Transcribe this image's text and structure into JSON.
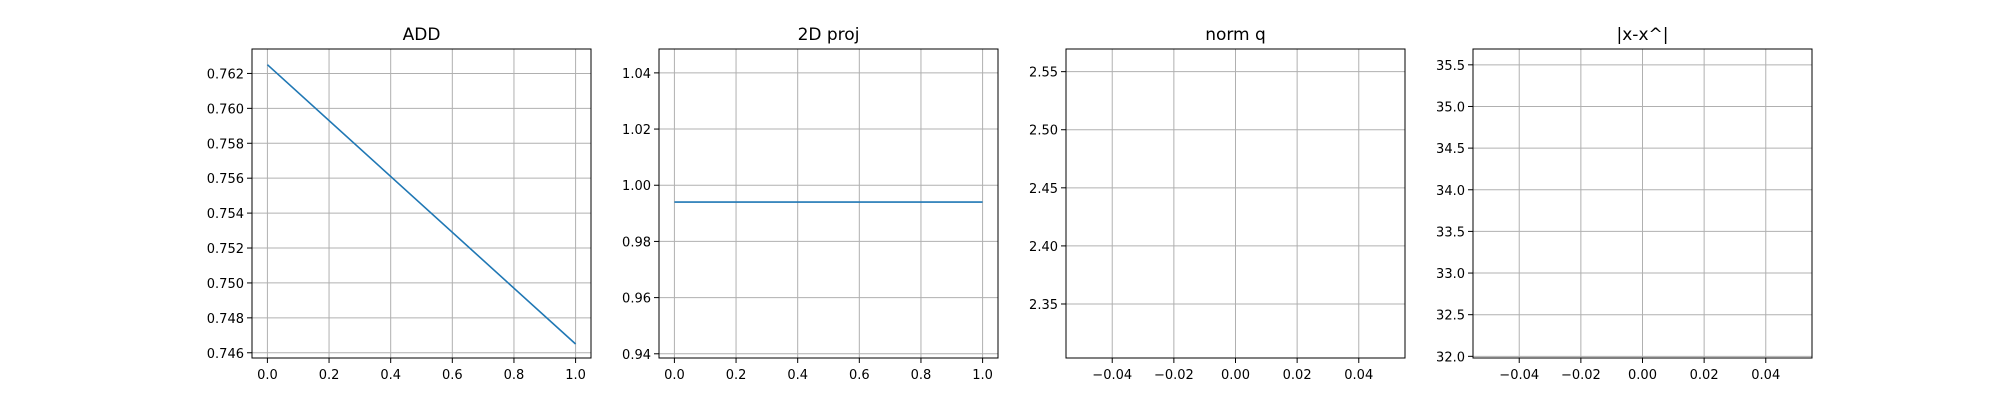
{
  "chart_data": [
    {
      "type": "line",
      "title": "ADD",
      "xlabel": "",
      "ylabel": "",
      "grid": true,
      "xlim": [
        -0.05,
        1.05
      ],
      "ylim": [
        0.7457,
        0.7634
      ],
      "xticks": [
        0.0,
        0.2,
        0.4,
        0.6,
        0.8,
        1.0
      ],
      "xtick_labels": [
        "0.0",
        "0.2",
        "0.4",
        "0.6",
        "0.8",
        "1.0"
      ],
      "yticks": [
        0.746,
        0.748,
        0.75,
        0.752,
        0.754,
        0.756,
        0.758,
        0.76,
        0.762
      ],
      "ytick_labels": [
        "0.746",
        "0.748",
        "0.750",
        "0.752",
        "0.754",
        "0.756",
        "0.758",
        "0.760",
        "0.762"
      ],
      "series": [
        {
          "x": [
            0.0,
            1.0
          ],
          "y": [
            0.7625,
            0.7465
          ],
          "color": "#1f77b4"
        }
      ]
    },
    {
      "type": "line",
      "title": "2D proj",
      "xlabel": "",
      "ylabel": "",
      "grid": true,
      "xlim": [
        -0.05,
        1.05
      ],
      "ylim": [
        0.9385,
        1.0485
      ],
      "xticks": [
        0.0,
        0.2,
        0.4,
        0.6,
        0.8,
        1.0
      ],
      "xtick_labels": [
        "0.0",
        "0.2",
        "0.4",
        "0.6",
        "0.8",
        "1.0"
      ],
      "yticks": [
        0.94,
        0.96,
        0.98,
        1.0,
        1.02,
        1.04
      ],
      "ytick_labels": [
        "0.94",
        "0.96",
        "0.98",
        "1.00",
        "1.02",
        "1.04"
      ],
      "series": [
        {
          "x": [
            0.0,
            1.0
          ],
          "y": [
            0.994,
            0.994
          ],
          "color": "#1f77b4"
        }
      ]
    },
    {
      "type": "line",
      "title": "norm q",
      "xlabel": "",
      "ylabel": "",
      "grid": true,
      "xlim": [
        -0.055,
        0.055
      ],
      "ylim": [
        2.3035,
        2.5695
      ],
      "xticks": [
        -0.04,
        -0.02,
        0.0,
        0.02,
        0.04
      ],
      "xtick_labels": [
        "−0.04",
        "−0.02",
        "0.00",
        "0.02",
        "0.04"
      ],
      "yticks": [
        2.35,
        2.4,
        2.45,
        2.5,
        2.55
      ],
      "ytick_labels": [
        "2.35",
        "2.40",
        "2.45",
        "2.50",
        "2.55"
      ],
      "series": []
    },
    {
      "type": "line",
      "title": "|x-x^|",
      "xlabel": "",
      "ylabel": "",
      "grid": true,
      "xlim": [
        -0.055,
        0.055
      ],
      "ylim": [
        31.98,
        35.69
      ],
      "xticks": [
        -0.04,
        -0.02,
        0.0,
        0.02,
        0.04
      ],
      "xtick_labels": [
        "−0.04",
        "−0.02",
        "0.00",
        "0.02",
        "0.04"
      ],
      "yticks": [
        32.0,
        32.5,
        33.0,
        33.5,
        34.0,
        34.5,
        35.0,
        35.5
      ],
      "ytick_labels": [
        "32.0",
        "32.5",
        "33.0",
        "33.5",
        "34.0",
        "34.5",
        "35.0",
        "35.5"
      ],
      "series": []
    }
  ]
}
